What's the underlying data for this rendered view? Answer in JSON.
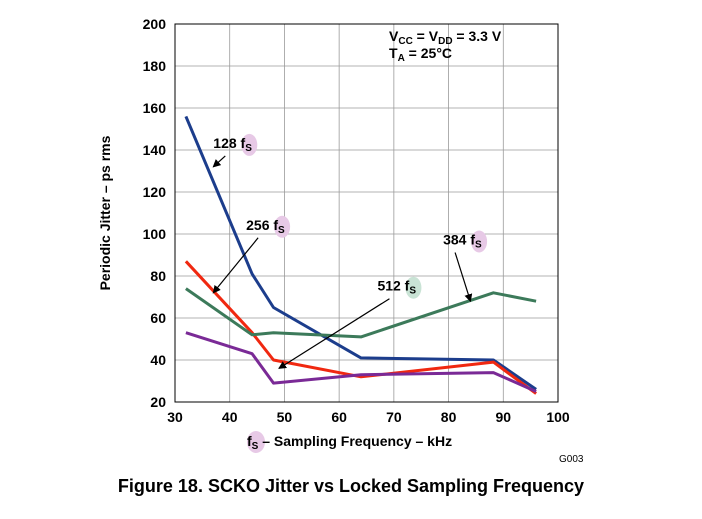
{
  "chart_data": {
    "type": "line",
    "title": "Figure 18.  SCKO Jitter vs Locked Sampling Frequency",
    "xlabel_symbol": "f",
    "xlabel_symbol_sub": "S",
    "xlabel_text": " – Sampling Frequency – kHz",
    "ylabel": "Periodic Jitter – ps rms",
    "xlim": [
      30,
      100
    ],
    "ylim": [
      20,
      200
    ],
    "xticks": [
      30,
      40,
      50,
      60,
      70,
      80,
      90,
      100
    ],
    "yticks": [
      20,
      40,
      60,
      80,
      100,
      120,
      140,
      160,
      180,
      200
    ],
    "grid": true,
    "conditions": {
      "vcc_main": "V",
      "vcc_sub": "CC",
      "eq1": " = V",
      "vdd_sub": "DD",
      "vcc_value": " = 3.3 V",
      "ta_main": "T",
      "ta_sub": "A",
      "ta_value": " = 25°C"
    },
    "figure_code": "G003",
    "series": [
      {
        "name": "128 fS",
        "label_main": "128 f",
        "label_sub": "S",
        "color": "#1c3d8c",
        "x": [
          32,
          44.1,
          48,
          64,
          88.2,
          96
        ],
        "values": [
          156,
          81,
          65,
          41,
          40,
          26
        ]
      },
      {
        "name": "256 fS",
        "label_main": "256 f",
        "label_sub": "S",
        "color": "#f02810",
        "x": [
          32,
          44.1,
          48,
          64,
          88.2,
          96
        ],
        "values": [
          87,
          53,
          40,
          32,
          39,
          24
        ]
      },
      {
        "name": "384 fS",
        "label_main": "384 f",
        "label_sub": "S",
        "color": "#3c7a5a",
        "x": [
          32,
          44.1,
          48,
          64,
          88.2,
          96
        ],
        "values": [
          74,
          52,
          53,
          51,
          72,
          68
        ]
      },
      {
        "name": "512 fS",
        "label_main": "512 f",
        "label_sub": "S",
        "color": "#7a2a96",
        "x": [
          32,
          44.1,
          48,
          64,
          88.2,
          96
        ],
        "values": [
          53,
          43,
          29,
          33,
          34,
          25
        ]
      }
    ],
    "annotations": [
      {
        "series": "128 fS",
        "text_main": "128 f",
        "text_sub": "S",
        "label_at": [
          37,
          141
        ],
        "arrow_to": [
          37,
          132
        ]
      },
      {
        "series": "256 fS",
        "text_main": "256 f",
        "text_sub": "S",
        "label_at": [
          43,
          102
        ],
        "arrow_to": [
          37,
          72
        ]
      },
      {
        "series": "384 fS",
        "text_main": "384 f",
        "text_sub": "S",
        "label_at": [
          79,
          95
        ],
        "arrow_to": [
          84,
          68
        ]
      },
      {
        "series": "512 fS",
        "text_main": "512 f",
        "text_sub": "S",
        "label_at": [
          67,
          73
        ],
        "arrow_to": [
          49,
          36
        ]
      }
    ]
  }
}
